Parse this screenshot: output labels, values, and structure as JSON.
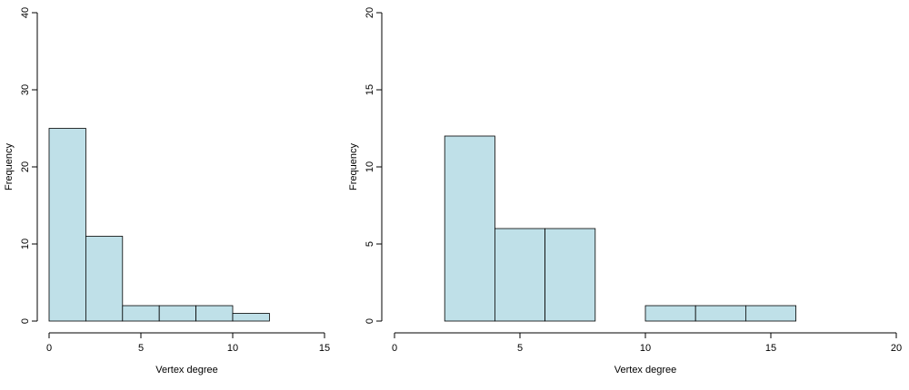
{
  "chart_data": [
    {
      "type": "bar",
      "bins": [
        [
          0,
          2
        ],
        [
          2,
          4
        ],
        [
          4,
          6
        ],
        [
          6,
          8
        ],
        [
          8,
          10
        ],
        [
          10,
          12
        ]
      ],
      "values": [
        25,
        11,
        2,
        2,
        2,
        1
      ],
      "xlabel": "Vertex degree",
      "ylabel": "Frequency",
      "xlim": [
        0,
        15
      ],
      "ylim": [
        0,
        40
      ],
      "xticks": [
        "0",
        "5",
        "10",
        "15"
      ],
      "yticks": [
        "0",
        "10",
        "20",
        "30",
        "40"
      ],
      "bar_color": "#bfe0e8",
      "grid": false
    },
    {
      "type": "bar",
      "bins": [
        [
          2,
          4
        ],
        [
          4,
          6
        ],
        [
          6,
          8
        ],
        [
          8,
          10
        ],
        [
          10,
          12
        ],
        [
          12,
          14
        ],
        [
          14,
          16
        ]
      ],
      "values": [
        12,
        6,
        6,
        0,
        1,
        1,
        1
      ],
      "xlabel": "Vertex degree",
      "ylabel": "Frequency",
      "xlim": [
        0,
        20
      ],
      "ylim": [
        0,
        20
      ],
      "xticks": [
        "0",
        "5",
        "10",
        "15",
        "20"
      ],
      "yticks": [
        "0",
        "5",
        "10",
        "15",
        "20"
      ],
      "bar_color": "#bfe0e8",
      "grid": false
    }
  ]
}
